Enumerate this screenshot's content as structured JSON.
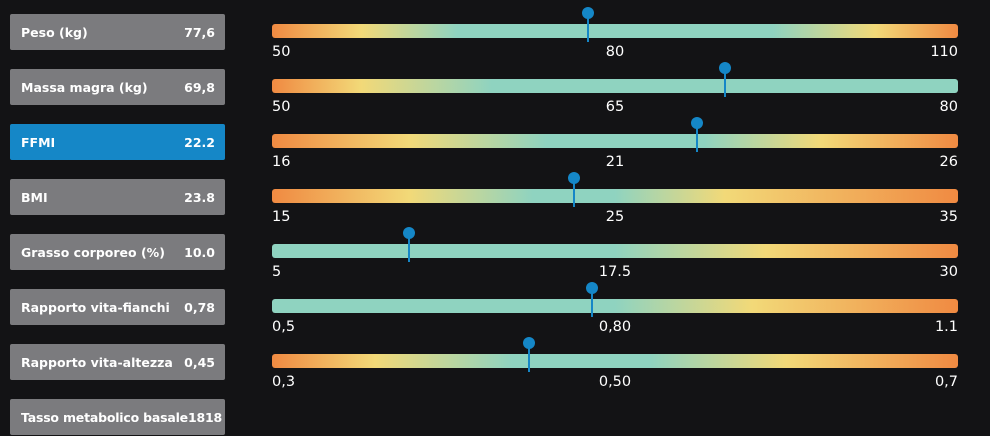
{
  "colors": {
    "background": "#131315",
    "metric_box": "#7b7b7e",
    "metric_box_active": "#1587c7",
    "marker": "#1587c7",
    "range_good": "#8fd3c0",
    "range_warn": "#f2d978",
    "range_bad": "#f08a42"
  },
  "metrics": [
    {
      "label": "Peso (kg)",
      "value": "77,6",
      "active": false
    },
    {
      "label": "Massa magra (kg)",
      "value": "69,8",
      "active": false
    },
    {
      "label": "FFMI",
      "value": "22.2",
      "active": true
    },
    {
      "label": "BMI",
      "value": "23.8",
      "active": false
    },
    {
      "label": "Grasso corporeo (%)",
      "value": "10.0",
      "active": false
    },
    {
      "label": "Rapporto vita-fianchi",
      "value": "0,78",
      "active": false
    },
    {
      "label": "Rapporto vita-altezza",
      "value": "0,45",
      "active": false
    },
    {
      "label": "Tasso metabolico basale",
      "value": "1818",
      "active": false
    }
  ],
  "gauges": [
    {
      "metric": "Peso (kg)",
      "min": "50",
      "mid": "80",
      "max": "110",
      "marker_value": 77.6
    },
    {
      "metric": "Massa magra (kg)",
      "min": "50",
      "mid": "65",
      "max": "80",
      "marker_value": 69.8
    },
    {
      "metric": "FFMI",
      "min": "16",
      "mid": "21",
      "max": "26",
      "marker_value": 22.2
    },
    {
      "metric": "BMI",
      "min": "15",
      "mid": "25",
      "max": "35",
      "marker_value": 23.8
    },
    {
      "metric": "Grasso corporeo (%)",
      "min": "5",
      "mid": "17.5",
      "max": "30",
      "marker_value": 10.0
    },
    {
      "metric": "Rapporto vita-fianchi",
      "min": "0,5",
      "mid": "0,80",
      "max": "1.1",
      "marker_value": 0.78
    },
    {
      "metric": "Rapporto vita-altezza",
      "min": "0,3",
      "mid": "0,50",
      "max": "0,7",
      "marker_value": 0.45
    }
  ]
}
